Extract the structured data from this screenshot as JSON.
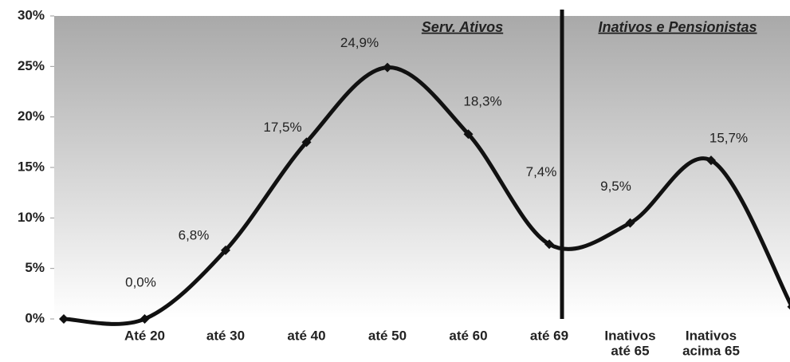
{
  "chart_data": {
    "type": "line",
    "categories": [
      null,
      "Até 20",
      "até 30",
      "até 40",
      "até 50",
      "até 60",
      "até 69",
      [
        "Inativos",
        "até 65"
      ],
      [
        "Inativos",
        "acima 65"
      ],
      null
    ],
    "values": [
      0,
      0,
      6.8,
      17.5,
      24.9,
      18.3,
      7.4,
      9.5,
      15.7,
      1.2
    ],
    "value_labels": [
      null,
      "0,0%",
      "6,8%",
      "17,5%",
      "24,9%",
      "18,3%",
      "7,4%",
      "9,5%",
      "15,7%",
      null
    ],
    "color": "#111111",
    "ylim": [
      0,
      30
    ],
    "yticks": [
      {
        "value": 0,
        "label": "0%"
      },
      {
        "value": 5,
        "label": "5%"
      },
      {
        "value": 10,
        "label": "10%"
      },
      {
        "value": 15,
        "label": "15%"
      },
      {
        "value": 20,
        "label": "20%"
      },
      {
        "value": 25,
        "label": "25%"
      },
      {
        "value": 30,
        "label": "30%"
      }
    ],
    "annotations": [
      "Serv. Ativos",
      "Inativos e Pensionistas"
    ],
    "grid": false
  }
}
